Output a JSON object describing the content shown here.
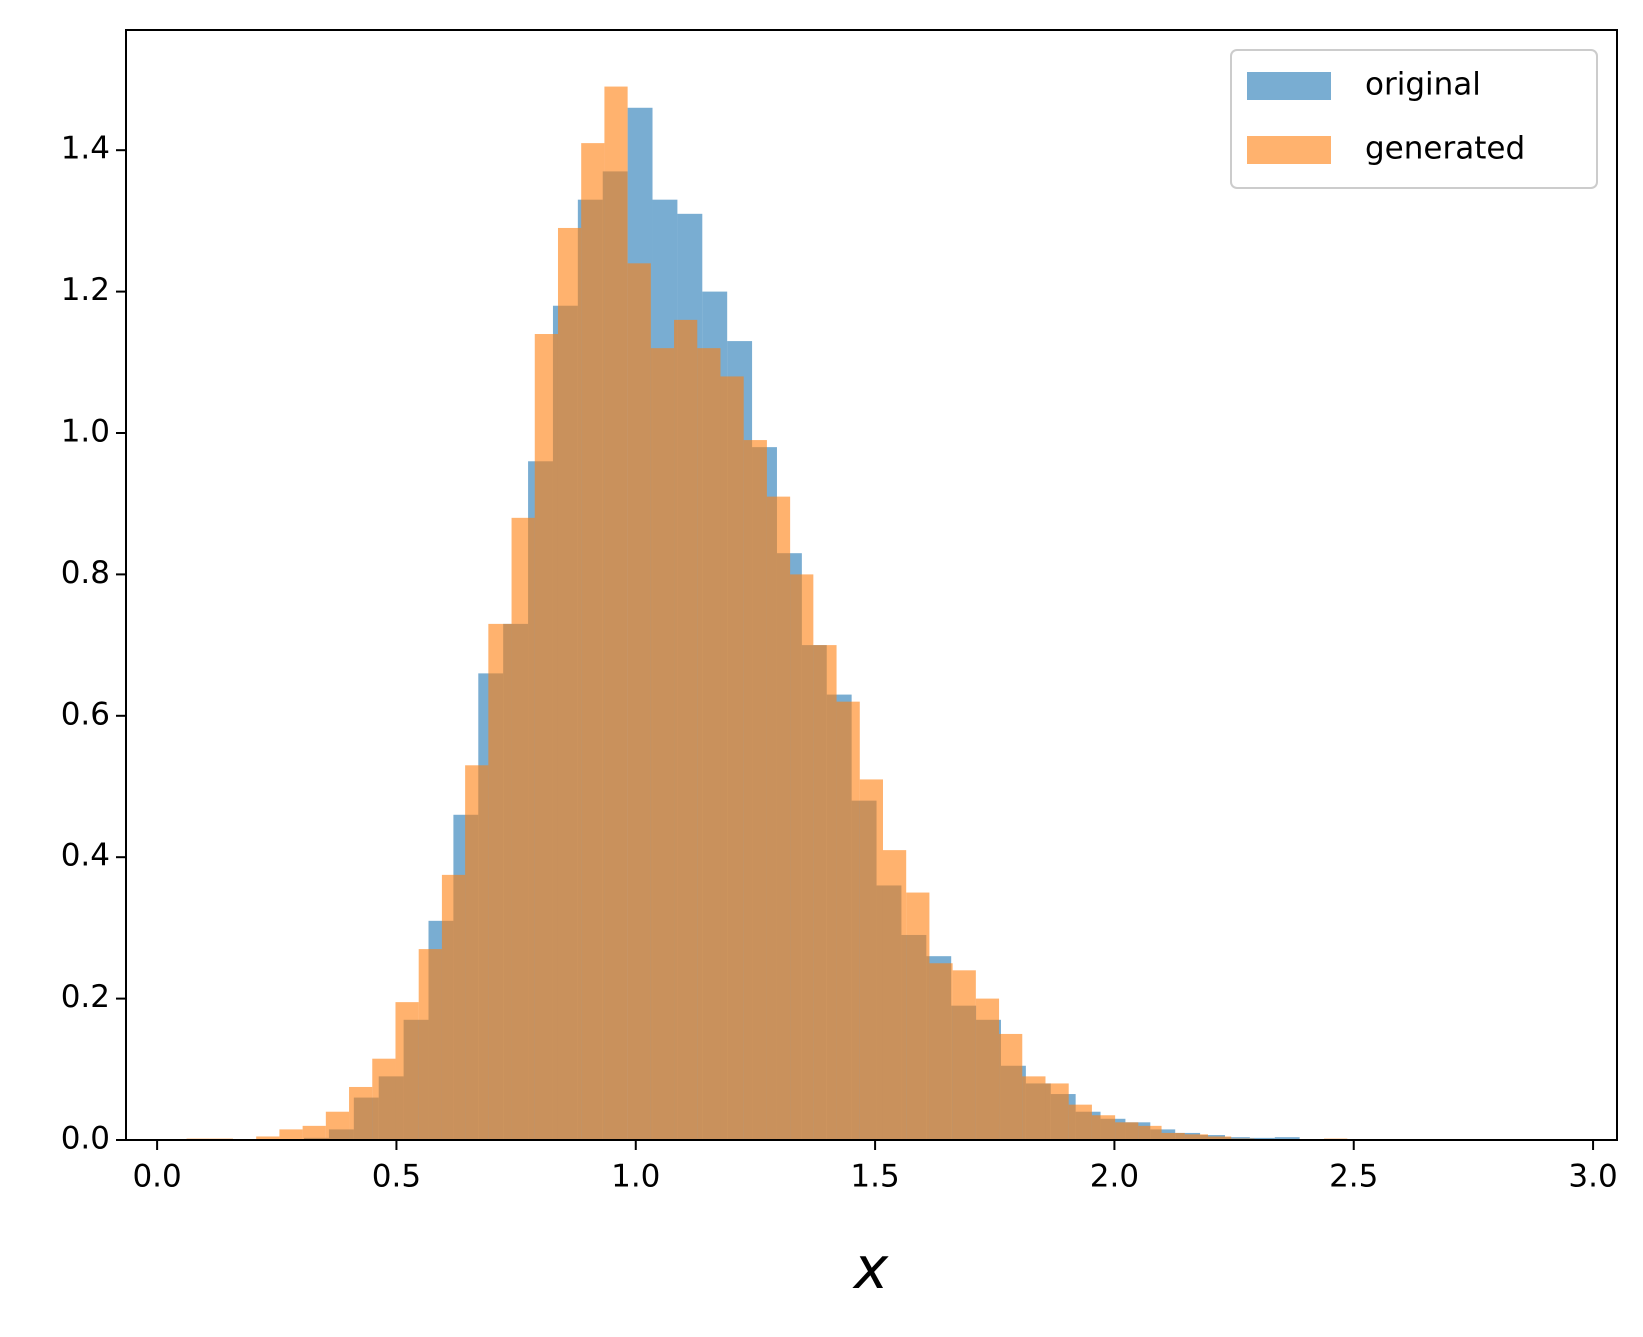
{
  "chart_data": {
    "type": "histogram",
    "xlabel": "x",
    "xlim": [
      -0.065,
      3.05
    ],
    "ylim": [
      0,
      1.57
    ],
    "xticks": [
      {
        "value": 0,
        "label": "0.0"
      },
      0.5,
      {
        "value": 1,
        "label": "1.0"
      },
      1.5,
      {
        "value": 2,
        "label": "2.0"
      },
      2.5,
      {
        "value": 3,
        "label": "3.0"
      }
    ],
    "yticks": [
      {
        "value": 0,
        "label": "0.0"
      },
      0.2,
      0.4,
      0.6,
      0.8,
      {
        "value": 1,
        "label": "1.0"
      },
      1.2,
      1.4
    ],
    "legend": "upper right",
    "opacity": 0.6,
    "series": [
      {
        "name": "original",
        "color": "#1f77b4",
        "bins": [
          0.307,
          0.359,
          0.411,
          0.463,
          0.515,
          0.567,
          0.619,
          0.671,
          0.723,
          0.775,
          0.827,
          0.879,
          0.931,
          0.983,
          1.035,
          1.087,
          1.139,
          1.191,
          1.243,
          1.295,
          1.347,
          1.399,
          1.451,
          1.503,
          1.555,
          1.607,
          1.659,
          1.711,
          1.763,
          1.815,
          1.867,
          1.919,
          1.971,
          2.023,
          2.075,
          2.127,
          2.179,
          2.231,
          2.283,
          2.335,
          2.387
        ],
        "values": [
          0.003,
          0.015,
          0.06,
          0.09,
          0.17,
          0.31,
          0.46,
          0.66,
          0.73,
          0.96,
          1.18,
          1.33,
          1.37,
          1.46,
          1.33,
          1.31,
          1.2,
          1.13,
          0.98,
          0.83,
          0.7,
          0.63,
          0.48,
          0.36,
          0.29,
          0.26,
          0.19,
          0.17,
          0.105,
          0.08,
          0.065,
          0.04,
          0.03,
          0.025,
          0.015,
          0.01,
          0.007,
          0.004,
          0.003,
          0.004
        ]
      },
      {
        "name": "generated",
        "color": "#ff7f0e",
        "bins": [
          0.0615,
          0.11,
          0.1585,
          0.207,
          0.2555,
          0.304,
          0.3525,
          0.401,
          0.4495,
          0.498,
          0.5465,
          0.595,
          0.6435,
          0.692,
          0.7405,
          0.789,
          0.8375,
          0.886,
          0.9345,
          0.983,
          1.0315,
          1.08,
          1.1285,
          1.177,
          1.2255,
          1.274,
          1.3225,
          1.371,
          1.4195,
          1.468,
          1.5165,
          1.565,
          1.6135,
          1.662,
          1.7105,
          1.759,
          1.8075,
          1.856,
          1.9045,
          1.953,
          2.0015,
          2.05,
          2.0985,
          2.147,
          2.1955,
          2.244,
          2.2925,
          2.341,
          2.3895,
          2.438,
          2.4865
        ],
        "values": [
          0.002,
          0.002,
          0,
          0.005,
          0.015,
          0.02,
          0.04,
          0.075,
          0.115,
          0.195,
          0.27,
          0.375,
          0.53,
          0.73,
          0.88,
          1.14,
          1.29,
          1.41,
          1.49,
          1.24,
          1.12,
          1.16,
          1.12,
          1.08,
          0.99,
          0.91,
          0.8,
          0.7,
          0.62,
          0.51,
          0.41,
          0.35,
          0.25,
          0.24,
          0.2,
          0.15,
          0.09,
          0.08,
          0.05,
          0.035,
          0.025,
          0.02,
          0.01,
          0.008,
          0.005,
          0.002,
          0.001,
          0,
          0,
          0.002
        ]
      }
    ]
  }
}
